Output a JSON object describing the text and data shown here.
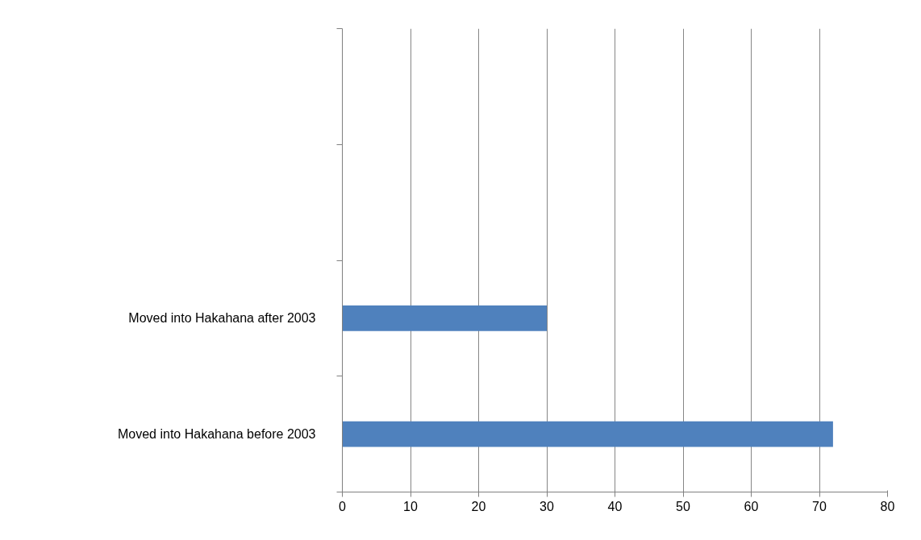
{
  "chart_data": {
    "type": "bar",
    "orientation": "horizontal",
    "categories": [
      null,
      null,
      "Moved into Hakahana after 2003",
      "Moved into Hakahana before 2003"
    ],
    "values": [
      null,
      null,
      30,
      72
    ],
    "color": "#4f81bd",
    "xlim": [
      0,
      80
    ],
    "xticks": [
      0,
      10,
      20,
      30,
      40,
      50,
      60,
      70,
      80
    ],
    "grid": "x"
  }
}
